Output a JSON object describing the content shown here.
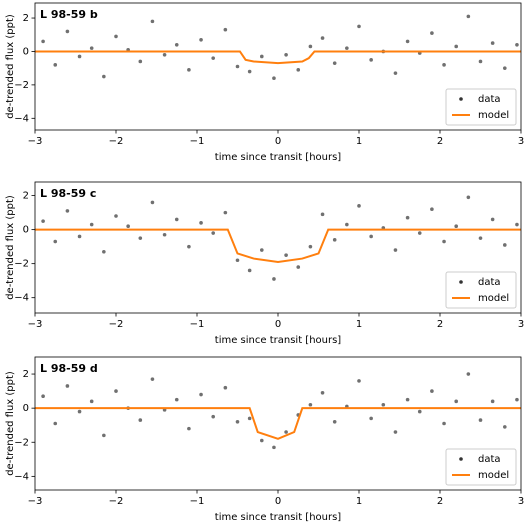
{
  "chart_data": [
    {
      "type": "scatter",
      "title": "L 98-59 b",
      "xlabel": "time since transit [hours]",
      "ylabel": "de-trended flux (ppt)",
      "xlim": [
        -3,
        3
      ],
      "ylim": [
        -4.7,
        2.9
      ],
      "xticks": [
        {
          "value": -3,
          "label": "−3"
        },
        {
          "value": -2,
          "label": "−2"
        },
        {
          "value": -1,
          "label": "−1"
        },
        0,
        1,
        2,
        3
      ],
      "yticks": [
        2,
        0,
        {
          "value": -2,
          "label": "−2"
        },
        {
          "value": -4,
          "label": "−4"
        }
      ],
      "legend": "lower right",
      "series": [
        {
          "name": "data",
          "type": "scatter",
          "color": "#333333",
          "x": [
            -2.9,
            -2.75,
            -2.6,
            -2.45,
            -2.3,
            -2.15,
            -2.0,
            -1.85,
            -1.7,
            -1.55,
            -1.4,
            -1.25,
            -1.1,
            -0.95,
            -0.8,
            -0.65,
            -0.5,
            -0.35,
            -0.2,
            -0.05,
            0.1,
            0.25,
            0.4,
            0.55,
            0.7,
            0.85,
            1.0,
            1.15,
            1.3,
            1.45,
            1.6,
            1.75,
            1.9,
            2.05,
            2.2,
            2.35,
            2.5,
            2.65,
            2.8,
            2.95
          ],
          "values": [
            0.6,
            -0.8,
            1.2,
            -0.3,
            0.2,
            -1.5,
            0.9,
            0.1,
            -0.6,
            1.8,
            -0.2,
            0.4,
            -1.1,
            0.7,
            -0.4,
            1.3,
            -0.9,
            -1.2,
            -0.3,
            -1.6,
            -0.2,
            -1.1,
            0.3,
            0.8,
            -0.7,
            0.2,
            1.5,
            -0.5,
            0.0,
            -1.3,
            0.6,
            -0.1,
            1.1,
            -0.8,
            0.3,
            2.1,
            -0.6,
            0.5,
            -1.0,
            0.4
          ]
        },
        {
          "name": "model",
          "type": "line",
          "color": "#ff7f0e",
          "x": [
            -3,
            -0.47,
            -0.4,
            -0.3,
            0,
            0.3,
            0.38,
            0.45,
            3
          ],
          "values": [
            0,
            0,
            -0.5,
            -0.6,
            -0.7,
            -0.6,
            -0.4,
            0,
            0
          ]
        }
      ]
    },
    {
      "type": "scatter",
      "title": "L 98-59 c",
      "xlabel": "time since transit [hours]",
      "ylabel": "de-trended flux (ppt)",
      "xlim": [
        -3,
        3
      ],
      "ylim": [
        -4.9,
        2.8
      ],
      "xticks": [
        {
          "value": -3,
          "label": "−3"
        },
        {
          "value": -2,
          "label": "−2"
        },
        {
          "value": -1,
          "label": "−1"
        },
        0,
        1,
        2,
        3
      ],
      "yticks": [
        2,
        0,
        {
          "value": -2,
          "label": "−2"
        },
        {
          "value": -4,
          "label": "−4"
        }
      ],
      "legend": "lower right",
      "series": [
        {
          "name": "data",
          "type": "scatter",
          "color": "#333333",
          "x": [
            -2.9,
            -2.75,
            -2.6,
            -2.45,
            -2.3,
            -2.15,
            -2.0,
            -1.85,
            -1.7,
            -1.55,
            -1.4,
            -1.25,
            -1.1,
            -0.95,
            -0.8,
            -0.65,
            -0.5,
            -0.35,
            -0.2,
            -0.05,
            0.1,
            0.25,
            0.4,
            0.55,
            0.7,
            0.85,
            1.0,
            1.15,
            1.3,
            1.45,
            1.6,
            1.75,
            1.9,
            2.05,
            2.2,
            2.35,
            2.5,
            2.65,
            2.8,
            2.95
          ],
          "values": [
            0.5,
            -0.7,
            1.1,
            -0.4,
            0.3,
            -1.3,
            0.8,
            0.2,
            -0.5,
            1.6,
            -0.3,
            0.6,
            -1.0,
            0.4,
            -0.2,
            1.0,
            -1.8,
            -2.4,
            -1.2,
            -2.9,
            -1.5,
            -2.2,
            -1.0,
            0.9,
            -0.6,
            0.3,
            1.4,
            -0.4,
            0.1,
            -1.2,
            0.7,
            -0.2,
            1.2,
            -0.7,
            0.2,
            1.9,
            -0.5,
            0.6,
            -0.9,
            0.3
          ]
        },
        {
          "name": "model",
          "type": "line",
          "color": "#ff7f0e",
          "x": [
            -3,
            -0.62,
            -0.5,
            -0.3,
            0,
            0.3,
            0.5,
            0.62,
            3
          ],
          "values": [
            0,
            0,
            -1.4,
            -1.7,
            -1.9,
            -1.7,
            -1.4,
            0,
            0
          ]
        }
      ]
    },
    {
      "type": "scatter",
      "title": "L 98-59 d",
      "xlabel": "time since transit [hours]",
      "ylabel": "de-trended flux (ppt)",
      "xlim": [
        -3,
        3
      ],
      "ylim": [
        -4.8,
        3.0
      ],
      "xticks": [
        {
          "value": -3,
          "label": "−3"
        },
        {
          "value": -2,
          "label": "−2"
        },
        {
          "value": -1,
          "label": "−1"
        },
        0,
        1,
        2,
        3
      ],
      "yticks": [
        2,
        0,
        {
          "value": -2,
          "label": "−2"
        },
        {
          "value": -4,
          "label": "−4"
        }
      ],
      "legend": "lower right",
      "series": [
        {
          "name": "data",
          "type": "scatter",
          "color": "#333333",
          "x": [
            -2.9,
            -2.75,
            -2.6,
            -2.45,
            -2.3,
            -2.15,
            -2.0,
            -1.85,
            -1.7,
            -1.55,
            -1.4,
            -1.25,
            -1.1,
            -0.95,
            -0.8,
            -0.65,
            -0.5,
            -0.35,
            -0.2,
            -0.05,
            0.1,
            0.25,
            0.4,
            0.55,
            0.7,
            0.85,
            1.0,
            1.15,
            1.3,
            1.45,
            1.6,
            1.75,
            1.9,
            2.05,
            2.2,
            2.35,
            2.5,
            2.65,
            2.8,
            2.95
          ],
          "values": [
            0.7,
            -0.9,
            1.3,
            -0.2,
            0.4,
            -1.6,
            1.0,
            0.0,
            -0.7,
            1.7,
            -0.1,
            0.5,
            -1.2,
            0.8,
            -0.5,
            1.2,
            -0.8,
            -0.6,
            -1.9,
            -2.3,
            -1.4,
            -0.4,
            0.2,
            0.9,
            -0.8,
            0.1,
            1.6,
            -0.6,
            0.2,
            -1.4,
            0.5,
            -0.2,
            1.0,
            -0.9,
            0.4,
            2.0,
            -0.7,
            0.4,
            -1.1,
            0.5
          ]
        },
        {
          "name": "model",
          "type": "line",
          "color": "#ff7f0e",
          "x": [
            -3,
            -0.35,
            -0.25,
            0,
            0.2,
            0.3,
            3
          ],
          "values": [
            0,
            0,
            -1.4,
            -1.8,
            -1.4,
            0,
            0
          ]
        }
      ]
    }
  ]
}
